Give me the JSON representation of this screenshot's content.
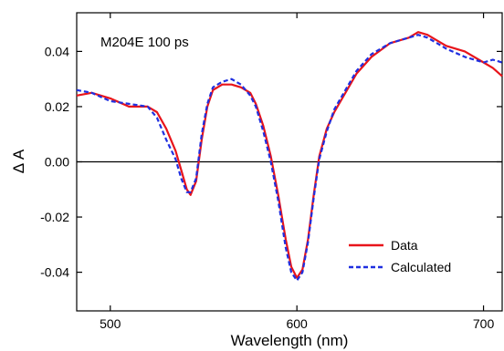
{
  "chart_data": {
    "type": "line",
    "annotation": "M204E 100 ps",
    "xlabel": "Wavelength (nm)",
    "ylabel": "Δ A",
    "xlim": [
      482,
      710
    ],
    "ylim": [
      -0.054,
      0.054
    ],
    "xticks": [
      500,
      600,
      700
    ],
    "yticks": [
      0.04,
      0.02,
      0.0,
      -0.02,
      -0.04
    ],
    "ytick_labels": [
      "0.04",
      "0.02",
      "0.00",
      "-0.02",
      "-0.04"
    ],
    "zero_line": true,
    "grid": false,
    "legend_position": "bottom-right",
    "series": [
      {
        "name": "Data",
        "color": "#e8141b",
        "style": "solid",
        "x": [
          482,
          490,
          500,
          510,
          520,
          525,
          530,
          535,
          538,
          541,
          543,
          546,
          549,
          552,
          555,
          560,
          565,
          570,
          575,
          578,
          582,
          586,
          590,
          594,
          597,
          600,
          603,
          606,
          609,
          612,
          616,
          620,
          626,
          632,
          640,
          650,
          660,
          665,
          670,
          675,
          680,
          690,
          700,
          705,
          710
        ],
        "y": [
          0.024,
          0.025,
          0.023,
          0.02,
          0.02,
          0.018,
          0.012,
          0.004,
          -0.003,
          -0.01,
          -0.012,
          -0.007,
          0.008,
          0.02,
          0.026,
          0.028,
          0.028,
          0.027,
          0.025,
          0.021,
          0.013,
          0.002,
          -0.012,
          -0.028,
          -0.038,
          -0.042,
          -0.039,
          -0.028,
          -0.012,
          0.002,
          0.012,
          0.018,
          0.025,
          0.032,
          0.038,
          0.043,
          0.045,
          0.047,
          0.046,
          0.044,
          0.042,
          0.04,
          0.036,
          0.034,
          0.031
        ]
      },
      {
        "name": "Calculated",
        "color": "#1f2fe0",
        "style": "dashed",
        "x": [
          482,
          490,
          500,
          510,
          520,
          525,
          530,
          535,
          538,
          541,
          543,
          546,
          549,
          552,
          555,
          560,
          565,
          570,
          575,
          578,
          582,
          586,
          590,
          594,
          597,
          600,
          603,
          606,
          609,
          612,
          616,
          620,
          626,
          632,
          640,
          650,
          660,
          665,
          670,
          675,
          680,
          690,
          700,
          705,
          710
        ],
        "y": [
          0.026,
          0.025,
          0.022,
          0.021,
          0.02,
          0.016,
          0.008,
          0.001,
          -0.006,
          -0.011,
          -0.011,
          -0.006,
          0.01,
          0.021,
          0.027,
          0.029,
          0.03,
          0.028,
          0.024,
          0.02,
          0.011,
          0.0,
          -0.014,
          -0.031,
          -0.04,
          -0.043,
          -0.04,
          -0.029,
          -0.013,
          0.001,
          0.011,
          0.019,
          0.026,
          0.033,
          0.039,
          0.043,
          0.045,
          0.046,
          0.045,
          0.043,
          0.041,
          0.038,
          0.036,
          0.037,
          0.036
        ]
      }
    ]
  }
}
